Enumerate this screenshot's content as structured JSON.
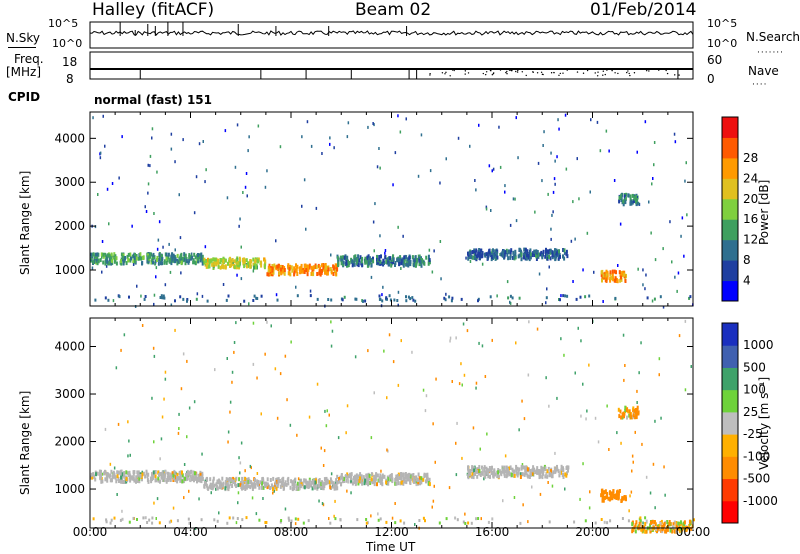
{
  "header": {
    "station": "Halley (fitACF)",
    "beam": "Beam 02",
    "date": "01/Feb/2014"
  },
  "params": {
    "nsky_label": "N.Sky",
    "nsky_ticks": [
      "10^5",
      "10^0"
    ],
    "nsearch_label": "N.Search",
    "nsearch_ticks": [
      "10^5",
      "10^0"
    ],
    "freq_label_1": "Freq.",
    "freq_label_2": "[MHz]",
    "freq_ticks": [
      "18",
      "8"
    ],
    "nave_label": "Nave",
    "nave_ticks": [
      "60",
      "0"
    ],
    "cpid_label": "CPID",
    "cpid_value": "normal (fast) 151"
  },
  "colors": {
    "power": [
      "#0000ff",
      "#1f3fa0",
      "#2f6f8f",
      "#3f9f5f",
      "#7fcf3f",
      "#e0c020",
      "#ff9a00",
      "#ff5a00",
      "#ee1010"
    ],
    "velocity": [
      "#ff0000",
      "#ff3a00",
      "#ff8c00",
      "#ffb000",
      "#bebebe",
      "#6ed23a",
      "#3fa26a",
      "#4060b0",
      "#1a2fbf"
    ],
    "ground": "#b4b4b4"
  },
  "chart_data": [
    {
      "type": "heatmap",
      "name": "power",
      "ylabel": "Slant Range [km]",
      "xlabel": "",
      "x_ticks": [
        "00:00",
        "04:00",
        "08:00",
        "12:00",
        "16:00",
        "20:00",
        "00:00"
      ],
      "y_ticks": [
        1000,
        2000,
        3000,
        4000
      ],
      "ylim": [
        180,
        4600
      ],
      "xlim_hours": [
        0,
        24
      ],
      "colorbar": {
        "label": "Power [dB]",
        "ticks": [
          "4",
          "8",
          "12",
          "16",
          "20",
          "24",
          "28"
        ]
      },
      "echo_bands": [
        {
          "t_start": 0.0,
          "t_end": 4.5,
          "range_km": 1300,
          "level_db": 10
        },
        {
          "t_start": 4.5,
          "t_end": 7.0,
          "range_km": 1200,
          "level_db": 16
        },
        {
          "t_start": 7.0,
          "t_end": 9.8,
          "range_km": 1050,
          "level_db": 22
        },
        {
          "t_start": 9.8,
          "t_end": 13.5,
          "range_km": 1250,
          "level_db": 8
        },
        {
          "t_start": 15.0,
          "t_end": 19.0,
          "range_km": 1400,
          "level_db": 6
        },
        {
          "t_start": 20.3,
          "t_end": 21.3,
          "range_km": 900,
          "level_db": 22
        },
        {
          "t_start": 21.0,
          "t_end": 21.8,
          "range_km": 2650,
          "level_db": 8
        }
      ]
    },
    {
      "type": "heatmap",
      "name": "velocity",
      "ylabel": "Slant Range [km]",
      "xlabel": "Time UT",
      "x_ticks": [
        "00:00",
        "04:00",
        "08:00",
        "12:00",
        "16:00",
        "20:00",
        "00:00"
      ],
      "y_ticks": [
        1000,
        2000,
        3000,
        4000
      ],
      "ylim": [
        180,
        4600
      ],
      "xlim_hours": [
        0,
        24
      ],
      "colorbar": {
        "label": "Velocity [m s⁻¹]",
        "ticks": [
          "-1000",
          "-500",
          "-100",
          "-25",
          "25",
          "100",
          "500",
          "1000"
        ]
      },
      "echo_bands": [
        {
          "t_start": 0.0,
          "t_end": 4.5,
          "range_km": 1300,
          "velocity": 0
        },
        {
          "t_start": 4.5,
          "t_end": 9.8,
          "range_km": 1150,
          "velocity": 0
        },
        {
          "t_start": 9.8,
          "t_end": 13.5,
          "range_km": 1250,
          "velocity": 0
        },
        {
          "t_start": 15.0,
          "t_end": 19.0,
          "range_km": 1400,
          "velocity": 0
        },
        {
          "t_start": 20.3,
          "t_end": 21.3,
          "range_km": 900,
          "velocity": -300
        },
        {
          "t_start": 21.0,
          "t_end": 21.8,
          "range_km": 2650,
          "velocity": -100
        },
        {
          "t_start": 21.5,
          "t_end": 24.0,
          "range_km": 250,
          "velocity": -100
        }
      ]
    }
  ]
}
